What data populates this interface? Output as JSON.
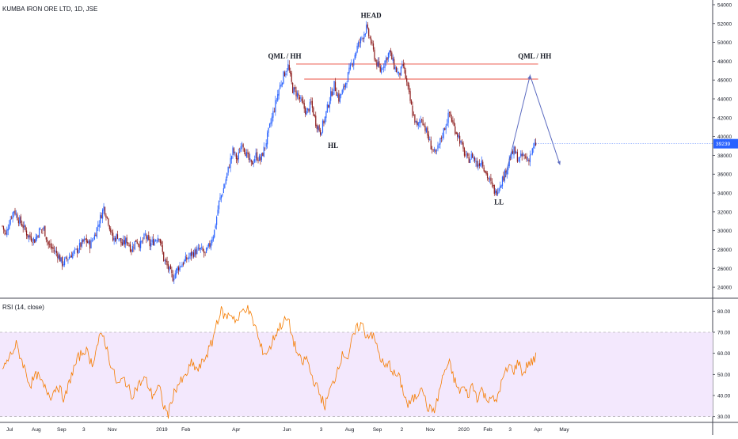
{
  "title": "KUMBA IRON ORE LTD, 1D, JSE",
  "rsi_title": "RSI (14, close)",
  "last_price_label": "39239",
  "colors": {
    "up": "#2962ff",
    "down": "#8b1a1a",
    "qml_line": "#f28b82",
    "projection": "#5c6bc0",
    "rsi_line": "#f57c00",
    "rsi_band": "#f3e8fd",
    "badge": "#2962ff"
  },
  "chart_data": [
    {
      "type": "candlestick",
      "title": "KUMBA IRON ORE LTD, 1D, JSE",
      "y_ticks": [
        24000,
        26000,
        28000,
        30000,
        32000,
        34000,
        36000,
        38000,
        40000,
        42000,
        44000,
        46000,
        48000,
        50000,
        52000,
        54000
      ],
      "ylim": [
        23000,
        54500
      ],
      "x_ticks": [
        "Jul",
        "Aug",
        "Sep",
        "3",
        "Nov",
        "2019",
        "Feb",
        "Apr",
        "Jun",
        "3",
        "Aug",
        "Sep",
        "2",
        "Nov",
        "2020",
        "Feb",
        "3",
        "Apr",
        "May"
      ],
      "price_path": [
        [
          0,
          30500
        ],
        [
          3,
          29500
        ],
        [
          6,
          31000
        ],
        [
          10,
          32200
        ],
        [
          14,
          31200
        ],
        [
          18,
          30500
        ],
        [
          22,
          29500
        ],
        [
          28,
          29000
        ],
        [
          32,
          30000
        ],
        [
          36,
          30200
        ],
        [
          40,
          28500
        ],
        [
          44,
          28000
        ],
        [
          48,
          27500
        ],
        [
          52,
          26500
        ],
        [
          56,
          27000
        ],
        [
          60,
          27500
        ],
        [
          64,
          27800
        ],
        [
          68,
          28500
        ],
        [
          72,
          29000
        ],
        [
          76,
          28500
        ],
        [
          80,
          29500
        ],
        [
          84,
          31000
        ],
        [
          88,
          32500
        ],
        [
          92,
          31000
        ],
        [
          96,
          29000
        ],
        [
          100,
          29500
        ],
        [
          104,
          28500
        ],
        [
          108,
          29000
        ],
        [
          112,
          28000
        ],
        [
          116,
          29000
        ],
        [
          120,
          28500
        ],
        [
          124,
          29500
        ],
        [
          128,
          28500
        ],
        [
          132,
          29000
        ],
        [
          136,
          29500
        ],
        [
          140,
          27000
        ],
        [
          144,
          26000
        ],
        [
          148,
          25000
        ],
        [
          152,
          26000
        ],
        [
          156,
          26500
        ],
        [
          160,
          27000
        ],
        [
          164,
          27500
        ],
        [
          168,
          27800
        ],
        [
          172,
          28000
        ],
        [
          176,
          27500
        ],
        [
          180,
          28500
        ],
        [
          184,
          30000
        ],
        [
          188,
          33000
        ],
        [
          192,
          34500
        ],
        [
          196,
          36500
        ],
        [
          200,
          38500
        ],
        [
          204,
          37500
        ],
        [
          208,
          39500
        ],
        [
          212,
          38000
        ],
        [
          216,
          37000
        ],
        [
          220,
          38000
        ],
        [
          224,
          37500
        ],
        [
          228,
          39000
        ],
        [
          232,
          41000
        ],
        [
          236,
          43000
        ],
        [
          240,
          45000
        ],
        [
          244,
          46500
        ],
        [
          248,
          47500
        ],
        [
          252,
          45000
        ],
        [
          256,
          44500
        ],
        [
          260,
          43500
        ],
        [
          264,
          42500
        ],
        [
          268,
          43500
        ],
        [
          272,
          41500
        ],
        [
          276,
          40500
        ],
        [
          280,
          42000
        ],
        [
          284,
          44000
        ],
        [
          288,
          45500
        ],
        [
          292,
          44000
        ],
        [
          296,
          45000
        ],
        [
          300,
          46500
        ],
        [
          304,
          48000
        ],
        [
          308,
          49500
        ],
        [
          312,
          50500
        ],
        [
          316,
          51500
        ],
        [
          320,
          50000
        ],
        [
          324,
          48000
        ],
        [
          328,
          47000
        ],
        [
          332,
          48000
        ],
        [
          336,
          49000
        ],
        [
          340,
          47500
        ],
        [
          344,
          46500
        ],
        [
          348,
          47500
        ],
        [
          352,
          45000
        ],
        [
          356,
          42500
        ],
        [
          360,
          41000
        ],
        [
          364,
          42000
        ],
        [
          368,
          40500
        ],
        [
          372,
          39000
        ],
        [
          376,
          38000
        ],
        [
          380,
          39500
        ],
        [
          384,
          41000
        ],
        [
          388,
          42500
        ],
        [
          392,
          41000
        ],
        [
          396,
          40000
        ],
        [
          400,
          38500
        ],
        [
          404,
          37500
        ],
        [
          408,
          38000
        ],
        [
          412,
          37000
        ],
        [
          416,
          37500
        ],
        [
          420,
          36000
        ],
        [
          424,
          35000
        ],
        [
          428,
          34000
        ],
        [
          432,
          35000
        ],
        [
          436,
          36000
        ],
        [
          440,
          37500
        ],
        [
          444,
          38500
        ],
        [
          448,
          37500
        ],
        [
          452,
          38000
        ],
        [
          456,
          37500
        ],
        [
          460,
          38500
        ],
        [
          463,
          39239
        ]
      ],
      "series_days": 464,
      "annotations": [
        {
          "text": "HEAD",
          "x": 320,
          "y": 52600
        },
        {
          "text": "QML / HH",
          "x": 245,
          "y": 48300
        },
        {
          "text": "QML / HH",
          "x": 462,
          "y": 48300
        },
        {
          "text": "HL",
          "x": 287,
          "y": 38800
        },
        {
          "text": "LL",
          "x": 431,
          "y": 32800
        }
      ],
      "qml_levels": [
        {
          "price": 47700,
          "x_start": 255,
          "x_end": 465
        },
        {
          "price": 46100,
          "x_start": 262,
          "x_end": 465
        }
      ],
      "projection": [
        [
          436,
          35500
        ],
        [
          458,
          46500
        ],
        [
          484,
          37000
        ]
      ],
      "last_price": 39239
    },
    {
      "type": "line",
      "title": "RSI (14, close)",
      "y_ticks": [
        30,
        40,
        50,
        60,
        70,
        80
      ],
      "ylim": [
        28,
        85
      ],
      "band": [
        30,
        70
      ],
      "x_ticks": [
        "Jul",
        "Aug",
        "Sep",
        "3",
        "Nov",
        "2019",
        "Feb",
        "Apr",
        "Jun",
        "3",
        "Aug",
        "Sep",
        "2",
        "Nov",
        "2020",
        "Feb",
        "3",
        "Apr",
        "May"
      ],
      "rsi_path": [
        [
          0,
          52
        ],
        [
          6,
          58
        ],
        [
          12,
          64
        ],
        [
          18,
          55
        ],
        [
          24,
          45
        ],
        [
          30,
          50
        ],
        [
          36,
          44
        ],
        [
          42,
          40
        ],
        [
          48,
          45
        ],
        [
          54,
          38
        ],
        [
          60,
          50
        ],
        [
          66,
          58
        ],
        [
          72,
          62
        ],
        [
          78,
          55
        ],
        [
          84,
          67
        ],
        [
          88,
          68
        ],
        [
          94,
          55
        ],
        [
          100,
          45
        ],
        [
          106,
          48
        ],
        [
          112,
          40
        ],
        [
          118,
          45
        ],
        [
          124,
          48
        ],
        [
          130,
          40
        ],
        [
          136,
          44
        ],
        [
          140,
          35
        ],
        [
          144,
          31
        ],
        [
          148,
          40
        ],
        [
          152,
          45
        ],
        [
          158,
          48
        ],
        [
          164,
          55
        ],
        [
          170,
          52
        ],
        [
          176,
          58
        ],
        [
          182,
          65
        ],
        [
          186,
          75
        ],
        [
          190,
          80
        ],
        [
          194,
          77
        ],
        [
          198,
          79
        ],
        [
          204,
          75
        ],
        [
          208,
          80
        ],
        [
          212,
          82
        ],
        [
          216,
          77
        ],
        [
          220,
          72
        ],
        [
          224,
          63
        ],
        [
          228,
          60
        ],
        [
          232,
          62
        ],
        [
          236,
          68
        ],
        [
          240,
          72
        ],
        [
          244,
          75
        ],
        [
          248,
          76
        ],
        [
          252,
          67
        ],
        [
          256,
          60
        ],
        [
          260,
          55
        ],
        [
          264,
          58
        ],
        [
          268,
          50
        ],
        [
          272,
          45
        ],
        [
          276,
          40
        ],
        [
          280,
          35
        ],
        [
          284,
          42
        ],
        [
          288,
          47
        ],
        [
          292,
          55
        ],
        [
          296,
          60
        ],
        [
          300,
          58
        ],
        [
          304,
          67
        ],
        [
          308,
          72
        ],
        [
          312,
          74
        ],
        [
          316,
          68
        ],
        [
          320,
          70
        ],
        [
          324,
          65
        ],
        [
          328,
          58
        ],
        [
          332,
          53
        ],
        [
          336,
          55
        ],
        [
          340,
          50
        ],
        [
          344,
          49
        ],
        [
          348,
          42
        ],
        [
          352,
          35
        ],
        [
          356,
          38
        ],
        [
          360,
          40
        ],
        [
          364,
          46
        ],
        [
          368,
          35
        ],
        [
          372,
          33
        ],
        [
          376,
          34
        ],
        [
          380,
          44
        ],
        [
          384,
          52
        ],
        [
          388,
          55
        ],
        [
          392,
          48
        ],
        [
          396,
          42
        ],
        [
          400,
          44
        ],
        [
          404,
          40
        ],
        [
          408,
          45
        ],
        [
          412,
          39
        ],
        [
          416,
          43
        ],
        [
          420,
          38
        ],
        [
          424,
          40
        ],
        [
          428,
          36
        ],
        [
          432,
          44
        ],
        [
          436,
          50
        ],
        [
          440,
          54
        ],
        [
          444,
          52
        ],
        [
          448,
          56
        ],
        [
          452,
          50
        ],
        [
          456,
          55
        ],
        [
          460,
          56
        ],
        [
          463,
          58
        ]
      ]
    }
  ]
}
